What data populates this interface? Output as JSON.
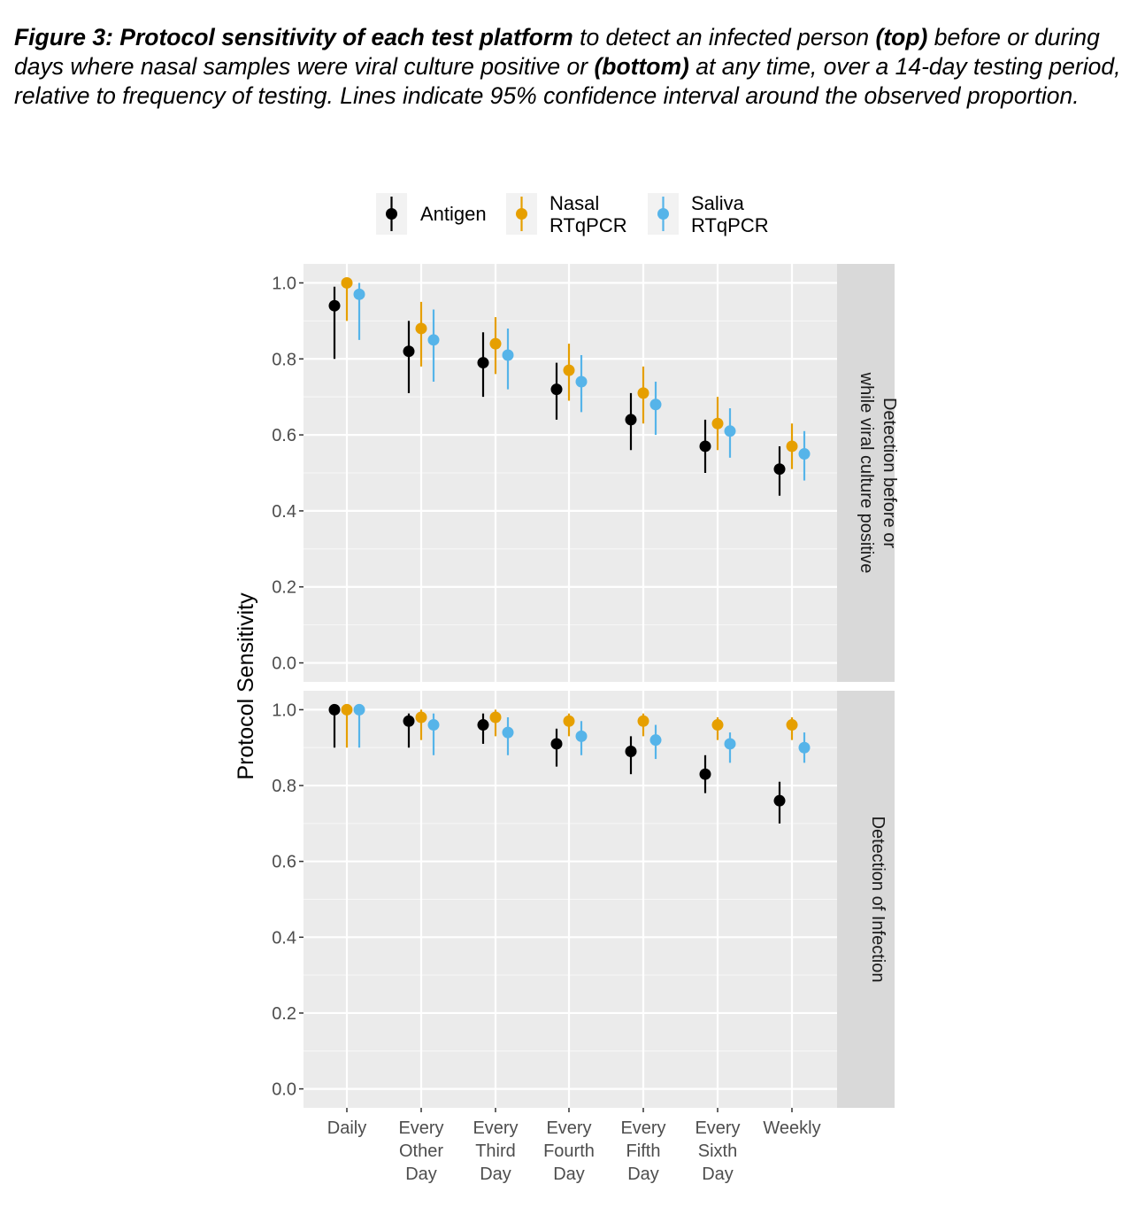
{
  "caption": {
    "part1": "Figure 3: Protocol sensitivity of each test platform",
    "part2": " to detect an infected person ",
    "part3": "(top)",
    "part4": " before or during days where nasal samples were viral culture positive or ",
    "part5": "(bottom)",
    "part6": " at any time, over a 14-day testing period, relative to frequency of testing. Lines indicate 95% confidence interval around the observed proportion."
  },
  "legend": {
    "items": [
      {
        "lines": [
          "Antigen"
        ],
        "color": "#000000"
      },
      {
        "lines": [
          "Nasal",
          "RTqPCR"
        ],
        "color": "#E69F00"
      },
      {
        "lines": [
          "Saliva",
          "RTqPCR"
        ],
        "color": "#56B4E9"
      }
    ]
  },
  "chart_data": {
    "type": "scatter",
    "ylabel": "Protocol Sensitivity",
    "ylim": [
      0,
      1
    ],
    "yticks": [
      "0.0",
      "0.2",
      "0.4",
      "0.6",
      "0.8",
      "1.0"
    ],
    "categories": [
      [
        "Daily"
      ],
      [
        "Every",
        "Other",
        "Day"
      ],
      [
        "Every",
        "Third",
        "Day"
      ],
      [
        "Every",
        "Fourth",
        "Day"
      ],
      [
        "Every",
        "Fifth",
        "Day"
      ],
      [
        "Every",
        "Sixth",
        "Day"
      ],
      [
        "Weekly"
      ]
    ],
    "series_colors": [
      "#000000",
      "#E69F00",
      "#56B4E9"
    ],
    "panels": [
      {
        "strip_label": [
          "Detection before or",
          "while viral culture positive"
        ],
        "series": [
          {
            "name": "Antigen",
            "values": [
              0.94,
              0.82,
              0.79,
              0.72,
              0.64,
              0.57,
              0.51
            ],
            "lower": [
              0.8,
              0.71,
              0.7,
              0.64,
              0.56,
              0.5,
              0.44
            ],
            "upper": [
              0.99,
              0.9,
              0.87,
              0.79,
              0.71,
              0.64,
              0.57
            ]
          },
          {
            "name": "Nasal RTqPCR",
            "values": [
              1.0,
              0.88,
              0.84,
              0.77,
              0.71,
              0.63,
              0.57
            ],
            "lower": [
              0.9,
              0.78,
              0.76,
              0.69,
              0.63,
              0.56,
              0.51
            ],
            "upper": [
              1.0,
              0.95,
              0.91,
              0.84,
              0.78,
              0.7,
              0.63
            ]
          },
          {
            "name": "Saliva RTqPCR",
            "values": [
              0.97,
              0.85,
              0.81,
              0.74,
              0.68,
              0.61,
              0.55
            ],
            "lower": [
              0.85,
              0.74,
              0.72,
              0.66,
              0.6,
              0.54,
              0.48
            ],
            "upper": [
              1.0,
              0.93,
              0.88,
              0.81,
              0.74,
              0.67,
              0.61
            ]
          }
        ]
      },
      {
        "strip_label": [
          "Detection of Infection"
        ],
        "series": [
          {
            "name": "Antigen",
            "values": [
              1.0,
              0.97,
              0.96,
              0.91,
              0.89,
              0.83,
              0.76
            ],
            "lower": [
              0.9,
              0.9,
              0.91,
              0.85,
              0.83,
              0.78,
              0.7
            ],
            "upper": [
              1.0,
              0.99,
              0.99,
              0.95,
              0.93,
              0.88,
              0.81
            ]
          },
          {
            "name": "Nasal RTqPCR",
            "values": [
              1.0,
              0.98,
              0.98,
              0.97,
              0.97,
              0.96,
              0.96
            ],
            "lower": [
              0.9,
              0.92,
              0.93,
              0.93,
              0.93,
              0.92,
              0.92
            ],
            "upper": [
              1.0,
              1.0,
              1.0,
              0.99,
              0.99,
              0.98,
              0.98
            ]
          },
          {
            "name": "Saliva RTqPCR",
            "values": [
              1.0,
              0.96,
              0.94,
              0.93,
              0.92,
              0.91,
              0.9
            ],
            "lower": [
              0.9,
              0.88,
              0.88,
              0.88,
              0.87,
              0.86,
              0.86
            ],
            "upper": [
              1.0,
              0.99,
              0.98,
              0.97,
              0.96,
              0.94,
              0.94
            ]
          }
        ]
      }
    ]
  }
}
